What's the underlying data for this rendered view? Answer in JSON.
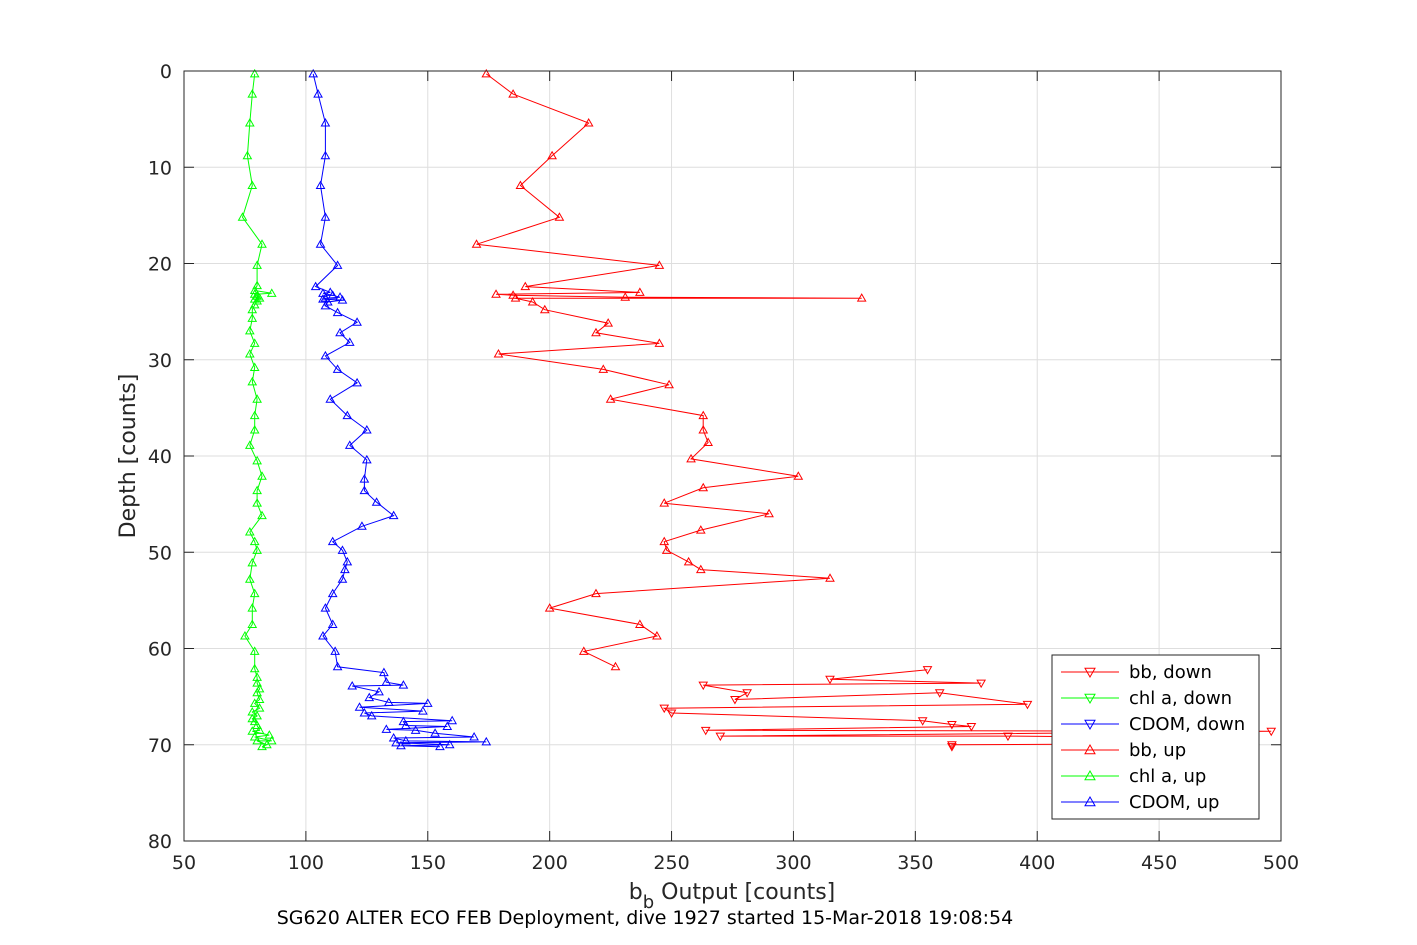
{
  "chart_data": {
    "type": "line",
    "caption": "SG620 ALTER ECO FEB Deployment, dive 1927 started 15-Mar-2018 19:08:54",
    "xlabel_main": "b",
    "xlabel_sub": "b",
    "xlabel_rest": " Output [counts]",
    "ylabel": "Depth [counts]",
    "xlim": [
      50,
      500
    ],
    "ylim": [
      0,
      80
    ],
    "y_reversed": true,
    "grid": true,
    "legend_position": "lower-right",
    "x_ticks": [
      "50",
      "100",
      "150",
      "200",
      "250",
      "300",
      "350",
      "400",
      "450",
      "500"
    ],
    "y_ticks": [
      "0",
      "10",
      "20",
      "30",
      "40",
      "50",
      "60",
      "70",
      "80"
    ],
    "series": [
      {
        "name": "bb, down",
        "color": "#ff0000",
        "marker": "triangle-down",
        "points": [
          [
            355,
            62.2
          ],
          [
            315,
            63.2
          ],
          [
            377,
            63.6
          ],
          [
            263,
            63.8
          ],
          [
            281,
            64.6
          ],
          [
            276,
            65.3
          ],
          [
            360,
            64.6
          ],
          [
            396,
            65.8
          ],
          [
            247,
            66.2
          ],
          [
            250,
            66.7
          ],
          [
            353,
            67.5
          ],
          [
            365,
            67.9
          ],
          [
            373,
            68.1
          ],
          [
            264,
            68.5
          ],
          [
            496,
            68.6
          ],
          [
            270,
            69.1
          ],
          [
            388,
            69.1
          ],
          [
            430,
            69.2
          ],
          [
            445,
            69.9
          ],
          [
            365,
            70.0
          ],
          [
            365,
            70.2
          ]
        ]
      },
      {
        "name": "chl a, down",
        "color": "#00ff00",
        "marker": "triangle-down",
        "points": []
      },
      {
        "name": "CDOM, down",
        "color": "#0000ff",
        "marker": "triangle-down",
        "points": []
      },
      {
        "name": "bb, up",
        "color": "#ff0000",
        "marker": "triangle-up",
        "points": [
          [
            174,
            0.3
          ],
          [
            185,
            2.4
          ],
          [
            216,
            5.4
          ],
          [
            201,
            8.8
          ],
          [
            188,
            11.9
          ],
          [
            204,
            15.2
          ],
          [
            170,
            18.0
          ],
          [
            245,
            20.2
          ],
          [
            190,
            22.4
          ],
          [
            237,
            23.0
          ],
          [
            178,
            23.2
          ],
          [
            185,
            23.3
          ],
          [
            231,
            23.5
          ],
          [
            328,
            23.6
          ],
          [
            186,
            23.6
          ],
          [
            193,
            24.0
          ],
          [
            198,
            24.8
          ],
          [
            224,
            26.2
          ],
          [
            219,
            27.2
          ],
          [
            245,
            28.3
          ],
          [
            179,
            29.4
          ],
          [
            222,
            31.0
          ],
          [
            249,
            32.6
          ],
          [
            225,
            34.1
          ],
          [
            263,
            35.8
          ],
          [
            263,
            37.3
          ],
          [
            265,
            38.6
          ],
          [
            258,
            40.3
          ],
          [
            302,
            42.1
          ],
          [
            263,
            43.3
          ],
          [
            247,
            44.9
          ],
          [
            290,
            46.0
          ],
          [
            262,
            47.7
          ],
          [
            247,
            48.9
          ],
          [
            248,
            49.8
          ],
          [
            257,
            51.0
          ],
          [
            262,
            51.8
          ],
          [
            315,
            52.7
          ],
          [
            219,
            54.3
          ],
          [
            200,
            55.8
          ],
          [
            237,
            57.5
          ],
          [
            244,
            58.7
          ],
          [
            214,
            60.3
          ],
          [
            227,
            61.9
          ]
        ]
      },
      {
        "name": "chl a, up",
        "color": "#00ff00",
        "marker": "triangle-up",
        "points": [
          [
            79,
            0.3
          ],
          [
            78,
            2.4
          ],
          [
            77,
            5.4
          ],
          [
            76,
            8.8
          ],
          [
            78,
            11.9
          ],
          [
            74,
            15.2
          ],
          [
            82,
            18.0
          ],
          [
            80,
            20.2
          ],
          [
            80,
            22.3
          ],
          [
            79,
            22.8
          ],
          [
            86,
            23.1
          ],
          [
            79,
            23.2
          ],
          [
            80,
            23.4
          ],
          [
            81,
            23.6
          ],
          [
            79,
            23.7
          ],
          [
            80,
            23.9
          ],
          [
            79,
            24.3
          ],
          [
            78,
            24.8
          ],
          [
            78,
            25.7
          ],
          [
            77,
            27.0
          ],
          [
            79,
            28.3
          ],
          [
            77,
            29.4
          ],
          [
            79,
            30.8
          ],
          [
            78,
            32.3
          ],
          [
            80,
            34.1
          ],
          [
            79,
            35.8
          ],
          [
            79,
            37.3
          ],
          [
            77,
            38.9
          ],
          [
            80,
            40.5
          ],
          [
            82,
            42.1
          ],
          [
            80,
            43.6
          ],
          [
            80,
            44.9
          ],
          [
            82,
            46.2
          ],
          [
            77,
            47.9
          ],
          [
            79,
            48.9
          ],
          [
            80,
            49.8
          ],
          [
            78,
            51.1
          ],
          [
            77,
            52.8
          ],
          [
            79,
            54.3
          ],
          [
            78,
            55.8
          ],
          [
            78,
            57.5
          ],
          [
            75,
            58.7
          ],
          [
            79,
            60.3
          ],
          [
            79,
            62.1
          ],
          [
            80,
            63.0
          ],
          [
            80,
            63.6
          ],
          [
            81,
            64.2
          ],
          [
            80,
            64.6
          ],
          [
            81,
            65.3
          ],
          [
            79,
            65.7
          ],
          [
            81,
            66.2
          ],
          [
            78,
            66.6
          ],
          [
            80,
            67.0
          ],
          [
            78,
            67.3
          ],
          [
            79,
            67.6
          ],
          [
            80,
            68.0
          ],
          [
            81,
            68.5
          ],
          [
            78,
            68.6
          ],
          [
            85,
            69.0
          ],
          [
            79,
            69.2
          ],
          [
            86,
            69.6
          ],
          [
            80,
            69.6
          ],
          [
            84,
            70.0
          ],
          [
            82,
            70.2
          ]
        ]
      },
      {
        "name": "CDOM, up",
        "color": "#0000ff",
        "marker": "triangle-up",
        "points": [
          [
            103,
            0.3
          ],
          [
            105,
            2.4
          ],
          [
            108,
            5.4
          ],
          [
            108,
            8.8
          ],
          [
            106,
            11.9
          ],
          [
            108,
            15.2
          ],
          [
            106,
            18.0
          ],
          [
            113,
            20.2
          ],
          [
            104,
            22.4
          ],
          [
            110,
            23.0
          ],
          [
            107,
            23.1
          ],
          [
            111,
            23.3
          ],
          [
            114,
            23.5
          ],
          [
            108,
            23.6
          ],
          [
            107,
            23.7
          ],
          [
            115,
            23.8
          ],
          [
            109,
            24.0
          ],
          [
            108,
            24.4
          ],
          [
            113,
            25.1
          ],
          [
            121,
            26.1
          ],
          [
            114,
            27.2
          ],
          [
            118,
            28.2
          ],
          [
            108,
            29.6
          ],
          [
            113,
            31.0
          ],
          [
            121,
            32.4
          ],
          [
            110,
            34.1
          ],
          [
            117,
            35.8
          ],
          [
            125,
            37.3
          ],
          [
            118,
            38.9
          ],
          [
            125,
            40.4
          ],
          [
            124,
            42.4
          ],
          [
            124,
            43.6
          ],
          [
            129,
            44.8
          ],
          [
            136,
            46.2
          ],
          [
            123,
            47.3
          ],
          [
            111,
            48.9
          ],
          [
            115,
            49.8
          ],
          [
            117,
            51.0
          ],
          [
            116,
            51.8
          ],
          [
            115,
            52.8
          ],
          [
            111,
            54.3
          ],
          [
            108,
            55.8
          ],
          [
            111,
            57.5
          ],
          [
            107,
            58.7
          ],
          [
            112,
            60.3
          ],
          [
            113,
            61.9
          ],
          [
            132,
            62.5
          ],
          [
            133,
            63.5
          ],
          [
            140,
            63.8
          ],
          [
            119,
            63.9
          ],
          [
            130,
            64.5
          ],
          [
            126,
            65.1
          ],
          [
            134,
            65.6
          ],
          [
            150,
            65.7
          ],
          [
            122,
            66.1
          ],
          [
            148,
            66.5
          ],
          [
            124,
            66.7
          ],
          [
            127,
            67.0
          ],
          [
            160,
            67.5
          ],
          [
            140,
            67.6
          ],
          [
            141,
            68.0
          ],
          [
            158,
            68.1
          ],
          [
            133,
            68.4
          ],
          [
            145,
            68.5
          ],
          [
            153,
            68.8
          ],
          [
            169,
            69.2
          ],
          [
            136,
            69.3
          ],
          [
            141,
            69.6
          ],
          [
            174,
            69.7
          ],
          [
            137,
            69.8
          ],
          [
            159,
            70.0
          ],
          [
            139,
            70.1
          ],
          [
            155,
            70.2
          ]
        ]
      }
    ]
  }
}
